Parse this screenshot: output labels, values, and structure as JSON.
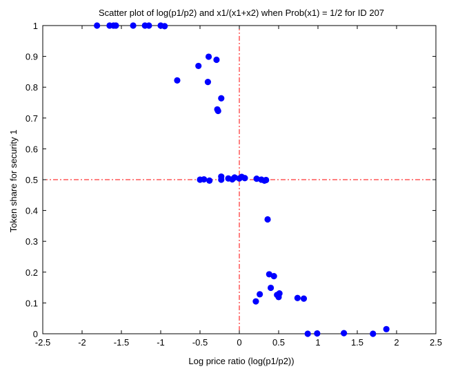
{
  "chart_data": {
    "type": "scatter",
    "title": "Scatter plot of log(p1/p2) and x1/(x1+x2) when Prob(x1) = 1/2 for ID 207",
    "xlabel": "Log price ratio (log(p1/p2))",
    "ylabel": "Token share for security 1",
    "xlim": [
      -2.5,
      2.5
    ],
    "ylim": [
      0,
      1
    ],
    "xticks": [
      -2.5,
      -2,
      -1.5,
      -1,
      -0.5,
      0,
      0.5,
      1,
      1.5,
      2,
      2.5
    ],
    "xtick_labels": [
      "-2.5",
      "-2",
      "-1.5",
      "-1",
      "-0.5",
      "0",
      "0.5",
      "1",
      "1.5",
      "2",
      "2.5"
    ],
    "yticks": [
      0,
      0.1,
      0.2,
      0.3,
      0.4,
      0.5,
      0.6,
      0.7,
      0.8,
      0.9,
      1
    ],
    "ytick_labels": [
      "0",
      "0.1",
      "0.2",
      "0.3",
      "0.4",
      "0.5",
      "0.6",
      "0.7",
      "0.8",
      "0.9",
      "1"
    ],
    "grid": false,
    "marker_color": "#0000ff",
    "reference_line_color": "#ff0000",
    "reference_lines": {
      "vertical_x": 0,
      "horizontal_y": 0.5,
      "style": "dash-dot"
    },
    "points": [
      {
        "x": -1.81,
        "y": 1.0
      },
      {
        "x": -1.65,
        "y": 1.0
      },
      {
        "x": -1.6,
        "y": 1.0
      },
      {
        "x": -1.57,
        "y": 1.0
      },
      {
        "x": -1.35,
        "y": 1.0
      },
      {
        "x": -1.2,
        "y": 1.0
      },
      {
        "x": -1.15,
        "y": 1.0
      },
      {
        "x": -1.0,
        "y": 1.0
      },
      {
        "x": -0.95,
        "y": 0.998
      },
      {
        "x": -0.79,
        "y": 0.822
      },
      {
        "x": -0.52,
        "y": 0.869
      },
      {
        "x": -0.39,
        "y": 0.899
      },
      {
        "x": -0.4,
        "y": 0.817
      },
      {
        "x": -0.29,
        "y": 0.889
      },
      {
        "x": -0.23,
        "y": 0.764
      },
      {
        "x": -0.28,
        "y": 0.728
      },
      {
        "x": -0.27,
        "y": 0.723
      },
      {
        "x": -0.5,
        "y": 0.5
      },
      {
        "x": -0.45,
        "y": 0.501
      },
      {
        "x": -0.38,
        "y": 0.497
      },
      {
        "x": -0.23,
        "y": 0.5
      },
      {
        "x": -0.23,
        "y": 0.51
      },
      {
        "x": -0.14,
        "y": 0.504
      },
      {
        "x": -0.09,
        "y": 0.501
      },
      {
        "x": -0.06,
        "y": 0.507
      },
      {
        "x": 0.0,
        "y": 0.504
      },
      {
        "x": 0.03,
        "y": 0.509
      },
      {
        "x": 0.07,
        "y": 0.505
      },
      {
        "x": 0.22,
        "y": 0.503
      },
      {
        "x": 0.28,
        "y": 0.5
      },
      {
        "x": 0.32,
        "y": 0.497
      },
      {
        "x": 0.34,
        "y": 0.499
      },
      {
        "x": 0.36,
        "y": 0.371
      },
      {
        "x": 0.38,
        "y": 0.193
      },
      {
        "x": 0.44,
        "y": 0.187
      },
      {
        "x": 0.4,
        "y": 0.149
      },
      {
        "x": 0.48,
        "y": 0.126
      },
      {
        "x": 0.5,
        "y": 0.119
      },
      {
        "x": 0.51,
        "y": 0.131
      },
      {
        "x": 0.26,
        "y": 0.128
      },
      {
        "x": 0.21,
        "y": 0.105
      },
      {
        "x": 0.74,
        "y": 0.116
      },
      {
        "x": 0.82,
        "y": 0.114
      },
      {
        "x": 0.87,
        "y": 0.0
      },
      {
        "x": 0.99,
        "y": 0.001
      },
      {
        "x": 1.33,
        "y": 0.002
      },
      {
        "x": 1.7,
        "y": 0.0
      },
      {
        "x": 1.87,
        "y": 0.015
      }
    ]
  }
}
